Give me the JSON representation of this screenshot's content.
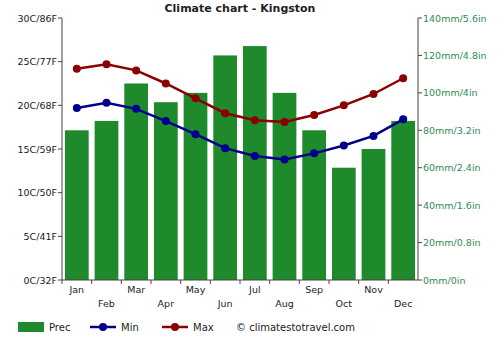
{
  "chart_data": {
    "type": "bar",
    "title": "Climate chart - Kingston",
    "categories": [
      "Jan",
      "Feb",
      "Mar",
      "Apr",
      "May",
      "Jun",
      "Jul",
      "Aug",
      "Sep",
      "Oct",
      "Nov",
      "Dec"
    ],
    "series": [
      {
        "name": "Prec",
        "type": "bar",
        "color": "#1f8a2c",
        "axis": "y2",
        "values": [
          80,
          85,
          105,
          95,
          100,
          120,
          125,
          100,
          80,
          60,
          70,
          85
        ]
      },
      {
        "name": "Min",
        "type": "line",
        "color": "#00008b",
        "marker": "circle",
        "values": [
          19.7,
          20.3,
          19.6,
          18.2,
          16.7,
          15.1,
          14.2,
          13.8,
          14.5,
          15.4,
          16.5,
          18.4
        ]
      },
      {
        "name": "Max",
        "type": "line",
        "color": "#8b0000",
        "marker": "circle",
        "values": [
          24.2,
          24.7,
          24.0,
          22.5,
          20.8,
          19.1,
          18.3,
          18.1,
          18.9,
          20.0,
          21.3,
          23.1
        ]
      }
    ],
    "ylim": [
      0,
      30
    ],
    "yticks": [
      {
        "value": 0,
        "label": "0C/32F"
      },
      {
        "value": 5,
        "label": "5C/41F"
      },
      {
        "value": 10,
        "label": "10C/50F"
      },
      {
        "value": 15,
        "label": "15C/59F"
      },
      {
        "value": 20,
        "label": "20C/68F"
      },
      {
        "value": 25,
        "label": "25C/77F"
      },
      {
        "value": 30,
        "label": "30C/86F"
      }
    ],
    "y2lim": [
      0,
      140
    ],
    "y2ticks": [
      {
        "value": 0,
        "label": "0mm/0in"
      },
      {
        "value": 20,
        "label": "20mm/0.8in"
      },
      {
        "value": 40,
        "label": "40mm/1.6in"
      },
      {
        "value": 60,
        "label": "60mm/2.4in"
      },
      {
        "value": 80,
        "label": "80mm/3.2in"
      },
      {
        "value": 100,
        "label": "100mm/4in"
      },
      {
        "value": 120,
        "label": "120mm/4.8in"
      },
      {
        "value": 140,
        "label": "140mm/5.6in"
      }
    ],
    "grid": false,
    "legend": "bottom",
    "annotations": [
      "© climatestotravel.com"
    ]
  }
}
